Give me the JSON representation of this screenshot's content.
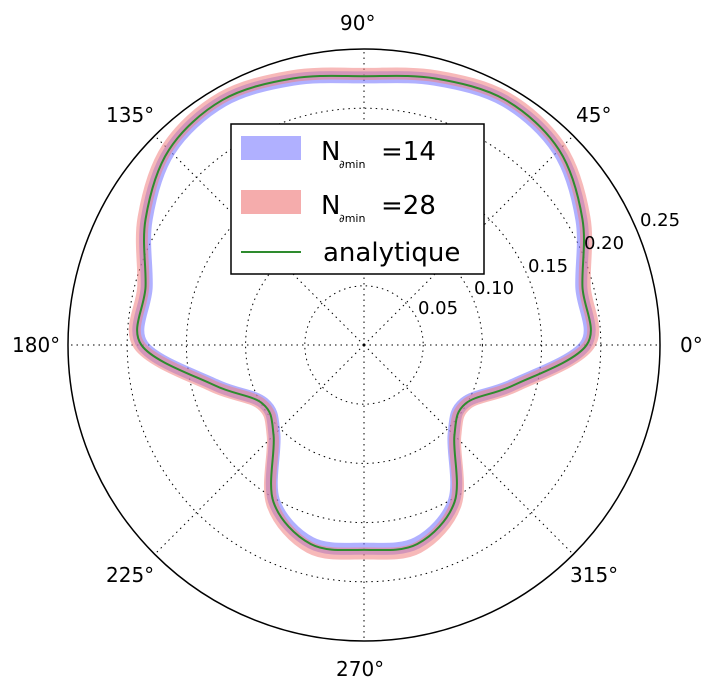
{
  "chart_data": {
    "type": "polar-line",
    "angle_ticks": [
      "0°",
      "45°",
      "90°",
      "135°",
      "180°",
      "225°",
      "270°",
      "315°"
    ],
    "radial_ticks": [
      "0.05",
      "0.10",
      "0.15",
      "0.20",
      "0.25"
    ],
    "radial_tick_values": [
      0.05,
      0.1,
      0.15,
      0.2,
      0.25
    ],
    "rlim": [
      0,
      0.25
    ],
    "grid": true,
    "legend_position": "top-center",
    "theta_deg": [
      0,
      15,
      30,
      45,
      60,
      75,
      90,
      105,
      120,
      135,
      150,
      165,
      180,
      195,
      210,
      225,
      240,
      255,
      270,
      285,
      300,
      315,
      330,
      345
    ],
    "series": [
      {
        "legend_main": "N",
        "legend_sub": "∂min",
        "legend_value": "=14",
        "style": "band",
        "color": "#7b7bff",
        "r": [
          0.187,
          0.19,
          0.212,
          0.232,
          0.238,
          0.232,
          0.226,
          0.232,
          0.238,
          0.232,
          0.212,
          0.19,
          0.187,
          0.13,
          0.098,
          0.107,
          0.152,
          0.173,
          0.172,
          0.173,
          0.152,
          0.107,
          0.098,
          0.13
        ]
      },
      {
        "legend_main": "N",
        "legend_sub": "∂min",
        "legend_value": "=28",
        "style": "band",
        "color": "#f08080",
        "r": [
          0.19,
          0.193,
          0.215,
          0.235,
          0.241,
          0.235,
          0.229,
          0.235,
          0.241,
          0.235,
          0.215,
          0.193,
          0.19,
          0.133,
          0.1,
          0.109,
          0.155,
          0.177,
          0.176,
          0.177,
          0.155,
          0.109,
          0.1,
          0.133
        ]
      },
      {
        "name": "analytique",
        "style": "line",
        "color": "#2e8b2e",
        "r": [
          0.188,
          0.191,
          0.213,
          0.233,
          0.239,
          0.233,
          0.227,
          0.233,
          0.239,
          0.233,
          0.213,
          0.191,
          0.188,
          0.131,
          0.099,
          0.108,
          0.153,
          0.174,
          0.173,
          0.174,
          0.153,
          0.108,
          0.099,
          0.131
        ]
      }
    ]
  }
}
